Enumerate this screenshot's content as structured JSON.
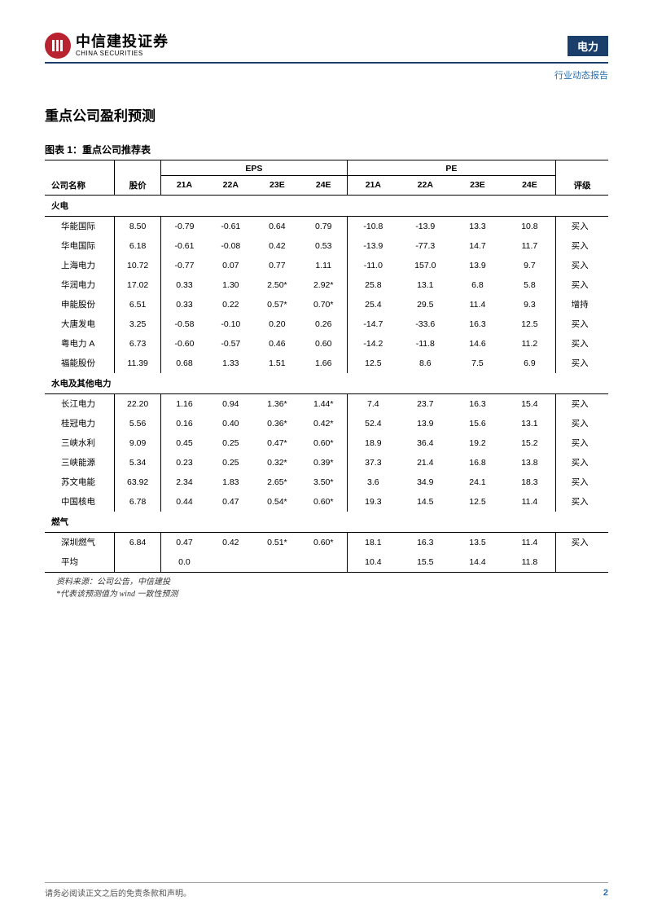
{
  "header": {
    "logo_cn": "中信建投证券",
    "logo_en": "CHINA SECURITIES",
    "sector": "电力",
    "report_type": "行业动态报告"
  },
  "title": "重点公司盈利预测",
  "table": {
    "caption": "图表 1：重点公司推荐表",
    "columns": {
      "name": "公司名称",
      "price": "股价",
      "eps_group": "EPS",
      "pe_group": "PE",
      "eps": [
        "21A",
        "22A",
        "23E",
        "24E"
      ],
      "pe": [
        "21A",
        "22A",
        "23E",
        "24E"
      ],
      "rating": "评级"
    },
    "sections": [
      {
        "label": "火电",
        "rows": [
          {
            "name": "华能国际",
            "price": "8.50",
            "eps": [
              "-0.79",
              "-0.61",
              "0.64",
              "0.79"
            ],
            "pe": [
              "-10.8",
              "-13.9",
              "13.3",
              "10.8"
            ],
            "rating": "买入"
          },
          {
            "name": "华电国际",
            "price": "6.18",
            "eps": [
              "-0.61",
              "-0.08",
              "0.42",
              "0.53"
            ],
            "pe": [
              "-13.9",
              "-77.3",
              "14.7",
              "11.7"
            ],
            "rating": "买入"
          },
          {
            "name": "上海电力",
            "price": "10.72",
            "eps": [
              "-0.77",
              "0.07",
              "0.77",
              "1.11"
            ],
            "pe": [
              "-11.0",
              "157.0",
              "13.9",
              "9.7"
            ],
            "rating": "买入"
          },
          {
            "name": "华润电力",
            "price": "17.02",
            "eps": [
              "0.33",
              "1.30",
              "2.50*",
              "2.92*"
            ],
            "pe": [
              "25.8",
              "13.1",
              "6.8",
              "5.8"
            ],
            "rating": "买入"
          },
          {
            "name": "申能股份",
            "price": "6.51",
            "eps": [
              "0.33",
              "0.22",
              "0.57*",
              "0.70*"
            ],
            "pe": [
              "25.4",
              "29.5",
              "11.4",
              "9.3"
            ],
            "rating": "增持"
          },
          {
            "name": "大唐发电",
            "price": "3.25",
            "eps": [
              "-0.58",
              "-0.10",
              "0.20",
              "0.26"
            ],
            "pe": [
              "-14.7",
              "-33.6",
              "16.3",
              "12.5"
            ],
            "rating": "买入"
          },
          {
            "name": "粤电力 A",
            "price": "6.73",
            "eps": [
              "-0.60",
              "-0.57",
              "0.46",
              "0.60"
            ],
            "pe": [
              "-14.2",
              "-11.8",
              "14.6",
              "11.2"
            ],
            "rating": "买入"
          },
          {
            "name": "福能股份",
            "price": "11.39",
            "eps": [
              "0.68",
              "1.33",
              "1.51",
              "1.66"
            ],
            "pe": [
              "12.5",
              "8.6",
              "7.5",
              "6.9"
            ],
            "rating": "买入"
          }
        ]
      },
      {
        "label": "水电及其他电力",
        "rows": [
          {
            "name": "长江电力",
            "price": "22.20",
            "eps": [
              "1.16",
              "0.94",
              "1.36*",
              "1.44*"
            ],
            "pe": [
              "7.4",
              "23.7",
              "16.3",
              "15.4"
            ],
            "rating": "买入"
          },
          {
            "name": "桂冠电力",
            "price": "5.56",
            "eps": [
              "0.16",
              "0.40",
              "0.36*",
              "0.42*"
            ],
            "pe": [
              "52.4",
              "13.9",
              "15.6",
              "13.1"
            ],
            "rating": "买入"
          },
          {
            "name": "三峡水利",
            "price": "9.09",
            "eps": [
              "0.45",
              "0.25",
              "0.47*",
              "0.60*"
            ],
            "pe": [
              "18.9",
              "36.4",
              "19.2",
              "15.2"
            ],
            "rating": "买入"
          },
          {
            "name": "三峡能源",
            "price": "5.34",
            "eps": [
              "0.23",
              "0.25",
              "0.32*",
              "0.39*"
            ],
            "pe": [
              "37.3",
              "21.4",
              "16.8",
              "13.8"
            ],
            "rating": "买入"
          },
          {
            "name": "苏文电能",
            "price": "63.92",
            "eps": [
              "2.34",
              "1.83",
              "2.65*",
              "3.50*"
            ],
            "pe": [
              "3.6",
              "34.9",
              "24.1",
              "18.3"
            ],
            "rating": "买入"
          },
          {
            "name": "中国核电",
            "price": "6.78",
            "eps": [
              "0.44",
              "0.47",
              "0.54*",
              "0.60*"
            ],
            "pe": [
              "19.3",
              "14.5",
              "12.5",
              "11.4"
            ],
            "rating": "买入"
          }
        ]
      },
      {
        "label": "燃气",
        "rows": [
          {
            "name": "深圳燃气",
            "price": "6.84",
            "eps": [
              "0.47",
              "0.42",
              "0.51*",
              "0.60*"
            ],
            "pe": [
              "18.1",
              "16.3",
              "13.5",
              "11.4"
            ],
            "rating": "买入"
          },
          {
            "name": "平均",
            "price": "",
            "eps": [
              "0.0",
              "",
              "",
              ""
            ],
            "pe": [
              "10.4",
              "15.5",
              "14.4",
              "11.8"
            ],
            "rating": ""
          }
        ]
      }
    ]
  },
  "notes": {
    "line1": "资料来源：公司公告，中信建投",
    "line2": "*代表该预测值为 wind 一致性预测"
  },
  "footer": {
    "disclaimer": "请务必阅读正文之后的免责条款和声明。",
    "page": "2"
  }
}
